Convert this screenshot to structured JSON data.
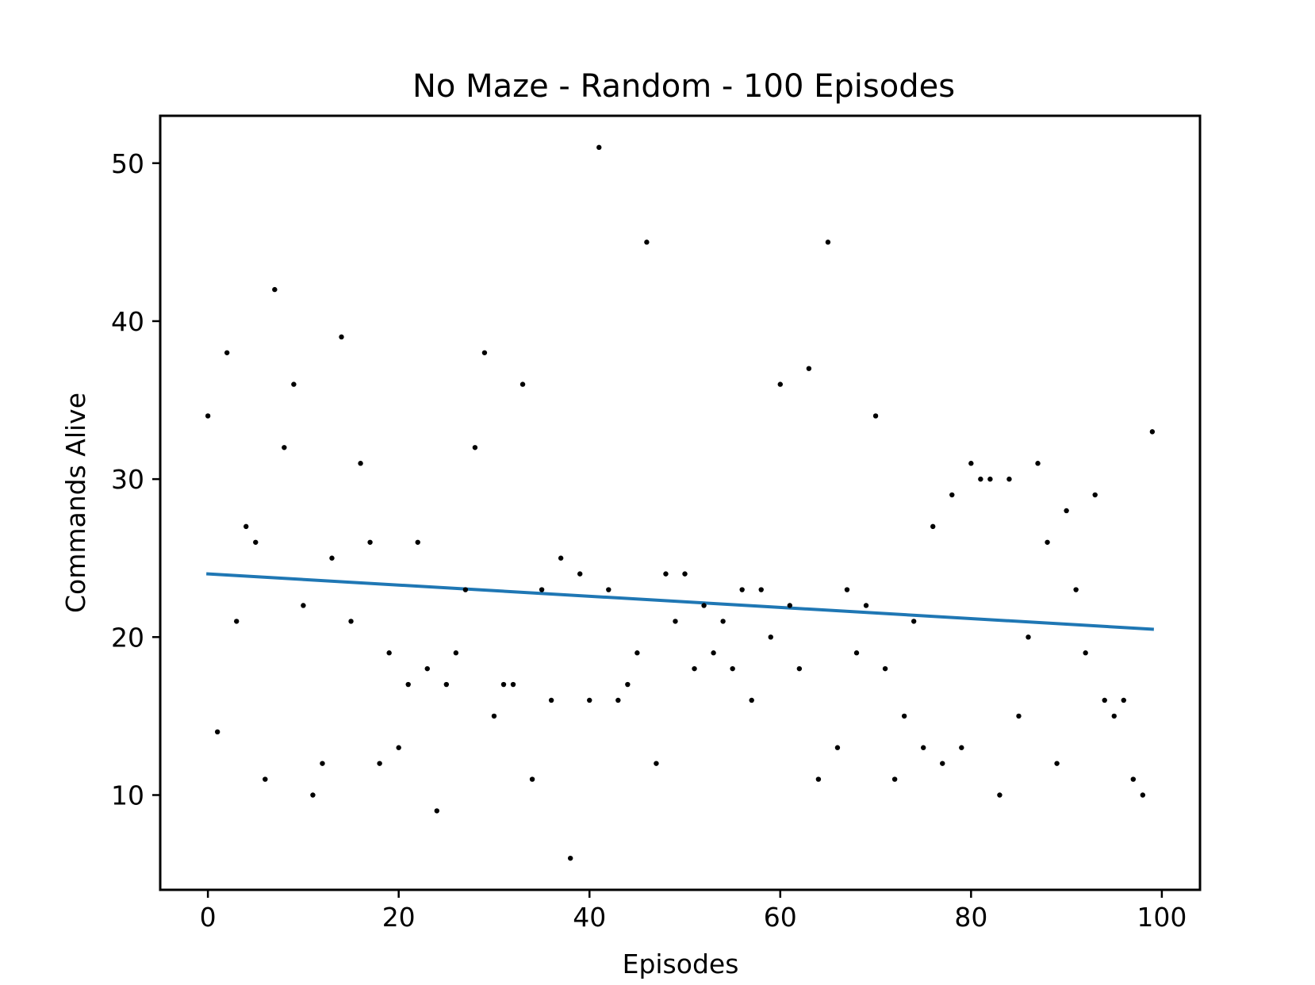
{
  "chart_data": {
    "type": "scatter",
    "title": "No Maze - Random - 100 Episodes",
    "xlabel": "Episodes",
    "ylabel": "Commands Alive",
    "xlim": [
      -5,
      104
    ],
    "ylim": [
      4,
      53
    ],
    "x_ticks": [
      0,
      20,
      40,
      60,
      80,
      100
    ],
    "y_ticks": [
      10,
      20,
      30,
      40,
      50
    ],
    "grid": false,
    "point_color": "#000000",
    "trend_color": "#1f77b4",
    "x": [
      0,
      1,
      2,
      3,
      4,
      5,
      6,
      7,
      8,
      9,
      10,
      11,
      12,
      13,
      14,
      15,
      16,
      17,
      18,
      19,
      20,
      21,
      22,
      23,
      24,
      25,
      26,
      27,
      28,
      29,
      30,
      31,
      32,
      33,
      34,
      35,
      36,
      37,
      38,
      39,
      40,
      41,
      42,
      43,
      44,
      45,
      46,
      47,
      48,
      49,
      50,
      51,
      52,
      53,
      54,
      55,
      56,
      57,
      58,
      59,
      60,
      61,
      62,
      63,
      64,
      65,
      66,
      67,
      68,
      69,
      70,
      71,
      72,
      73,
      74,
      75,
      76,
      77,
      78,
      79,
      80,
      81,
      82,
      83,
      84,
      85,
      86,
      87,
      88,
      89,
      90,
      91,
      92,
      93,
      94,
      95,
      96,
      97,
      98,
      99
    ],
    "y": [
      34,
      14,
      38,
      21,
      27,
      26,
      11,
      42,
      32,
      36,
      22,
      10,
      12,
      25,
      39,
      21,
      31,
      26,
      12,
      19,
      13,
      17,
      26,
      18,
      9,
      17,
      19,
      23,
      32,
      38,
      15,
      17,
      17,
      36,
      11,
      23,
      16,
      25,
      6,
      24,
      16,
      51,
      23,
      16,
      17,
      19,
      45,
      12,
      24,
      21,
      24,
      18,
      22,
      19,
      21,
      18,
      23,
      16,
      23,
      20,
      36,
      22,
      18,
      37,
      11,
      45,
      13,
      23,
      19,
      22,
      34,
      18,
      11,
      15,
      21,
      13,
      27,
      12,
      29,
      13,
      31,
      30,
      30,
      10,
      30,
      15,
      20,
      31,
      26,
      12,
      28,
      23,
      19,
      29,
      16,
      15,
      16,
      11,
      10,
      33
    ],
    "trend": {
      "x": [
        0,
        99
      ],
      "y": [
        24.0,
        20.5
      ]
    }
  }
}
